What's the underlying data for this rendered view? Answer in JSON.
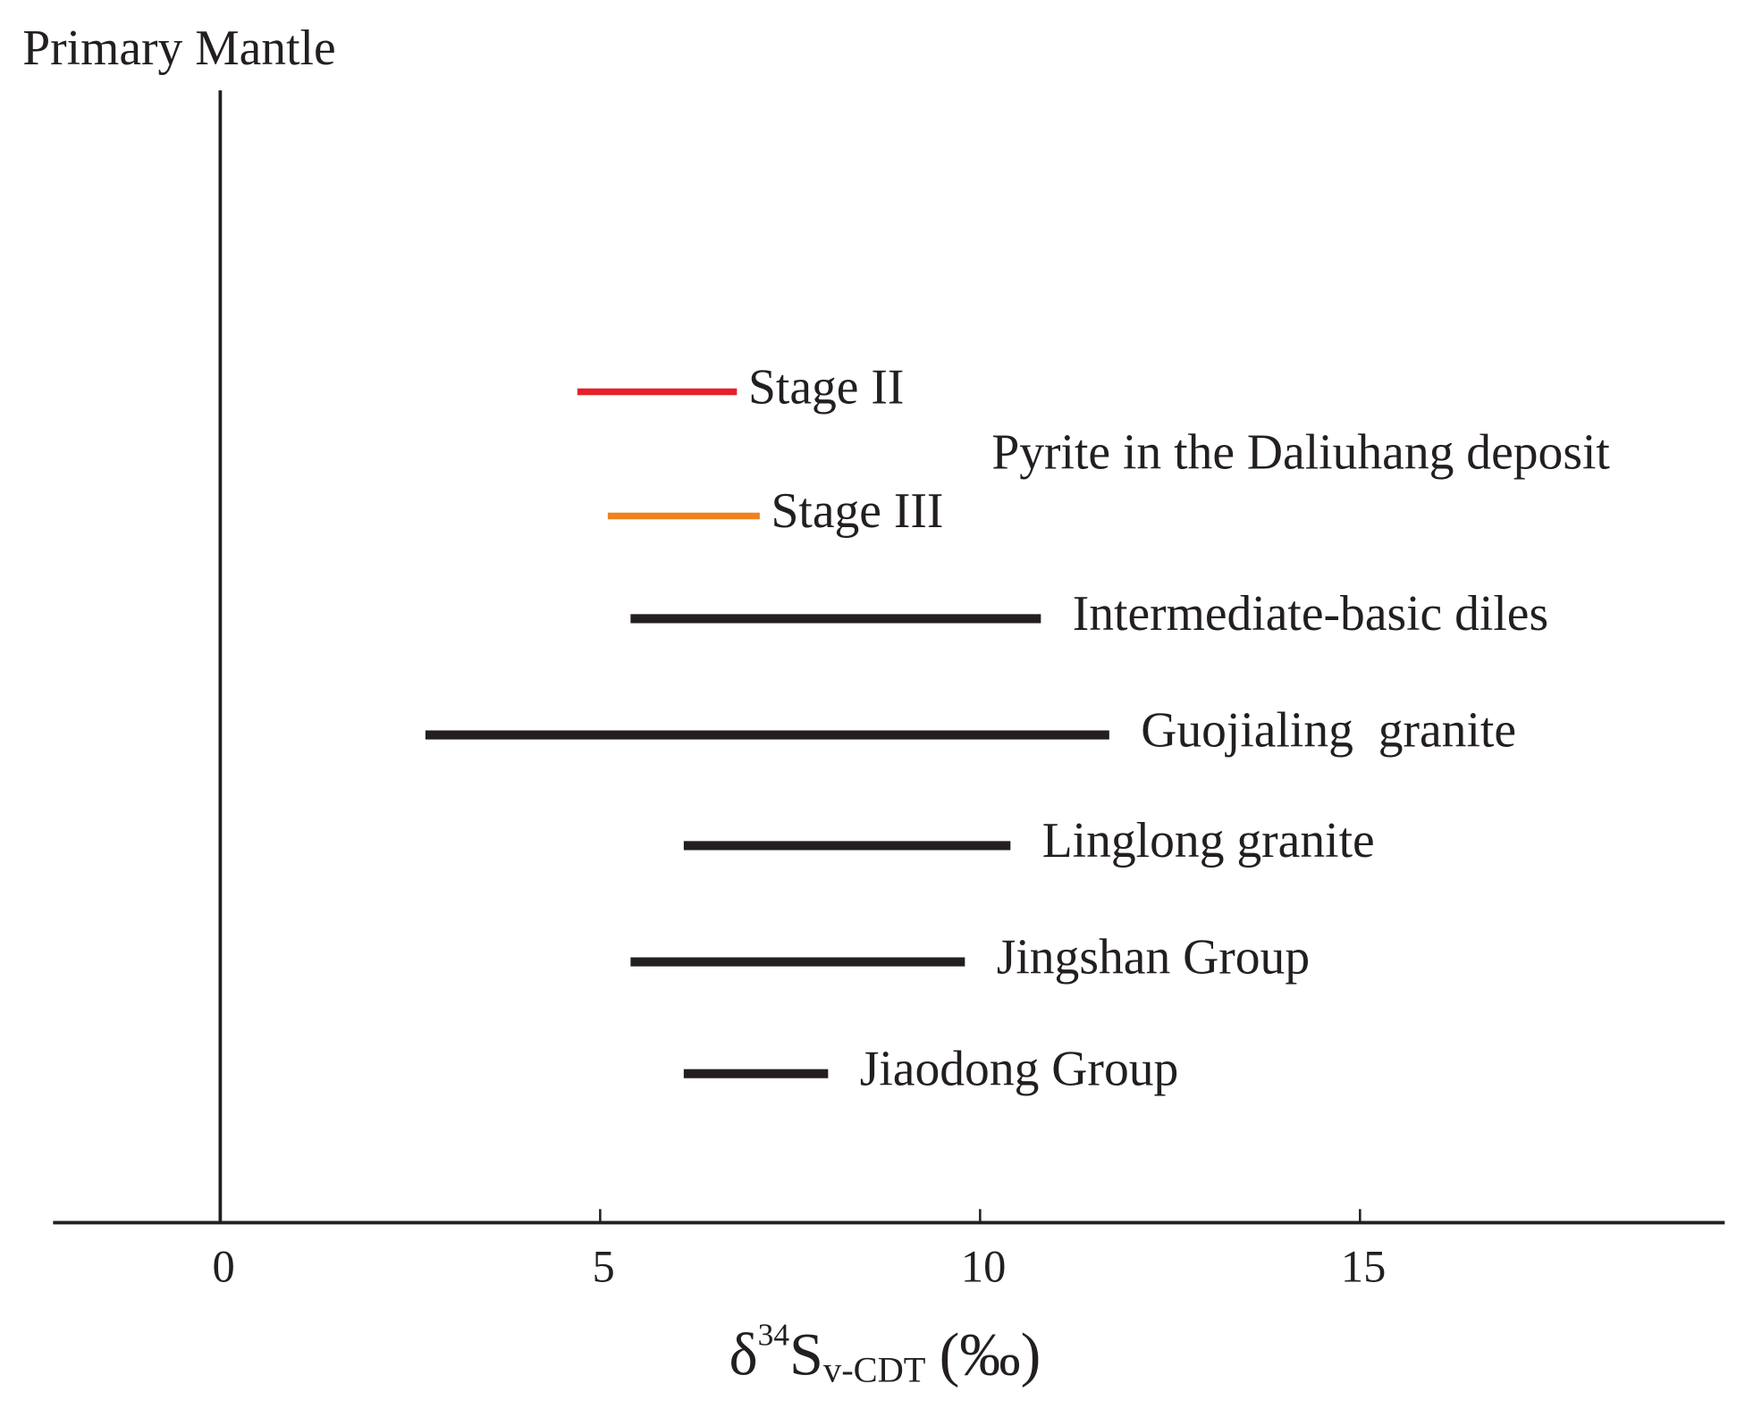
{
  "chart_data": {
    "type": "range",
    "reference_line": {
      "value": 0,
      "label": "Primary Mantle"
    },
    "annotation": "Pyrite in the Daliuhang deposit",
    "x_label_parts": [
      "δ",
      "34",
      "S",
      "v-CDT",
      "(‰)"
    ],
    "xlim": [
      -2.2,
      19.8
    ],
    "xticks": [
      0,
      5,
      10,
      15
    ],
    "series": [
      {
        "name": "Stage II",
        "color": "#e8202a",
        "values": [
          4.7,
          6.8
        ]
      },
      {
        "name": "Stage III",
        "color": "#f0821e",
        "values": [
          5.1,
          7.1
        ]
      },
      {
        "name": "Intermediate-basic diles",
        "color": "#231f20",
        "values": [
          5.4,
          10.8
        ]
      },
      {
        "name": "Guojialing  granite",
        "color": "#231f20",
        "values": [
          2.7,
          11.7
        ]
      },
      {
        "name": "Linglong granite",
        "color": "#231f20",
        "values": [
          6.1,
          10.4
        ]
      },
      {
        "name": "Jingshan Group",
        "color": "#231f20",
        "values": [
          5.4,
          9.8
        ]
      },
      {
        "name": "Jiaodong Group",
        "color": "#231f20",
        "values": [
          6.1,
          8.0
        ]
      }
    ]
  }
}
